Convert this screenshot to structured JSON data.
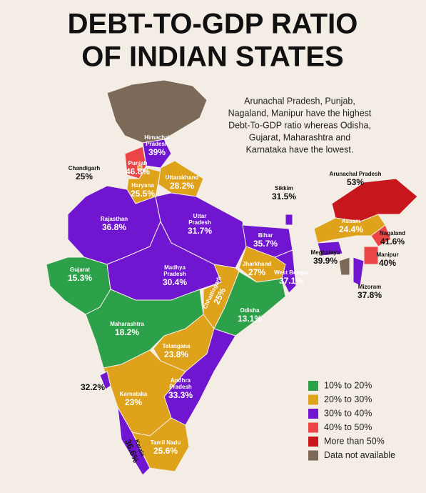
{
  "title_lines": [
    "DEBT-TO-GDP RATIO",
    "OF INDIAN STATES"
  ],
  "annotation_lines": [
    "Arunachal Pradesh, Punjab,",
    "Nagaland, Manipur have the highest",
    "Debt-To-GDP ratio whereas Odisha,",
    "Gujarat, Maharashtra and",
    "Karnataka have the lowest."
  ],
  "legend": [
    {
      "label": "10% to 20%",
      "color": "#2ca14a"
    },
    {
      "label": "20% to 30%",
      "color": "#dea21b"
    },
    {
      "label": "30% to 40%",
      "color": "#7016d0"
    },
    {
      "label": "40% to 50%",
      "color": "#ec4545"
    },
    {
      "label": "More than 50%",
      "color": "#c8161d"
    },
    {
      "label": "Data not available",
      "color": "#7d6957"
    }
  ],
  "states": [
    {
      "name": "Himachal Pradesh",
      "value": 39,
      "label": "39%",
      "color": "#7016d0"
    },
    {
      "name": "Punjab",
      "value": 46.8,
      "label": "46.8%",
      "color": "#ec4545"
    },
    {
      "name": "Chandigarh",
      "value": 25,
      "label": "25%",
      "color": "#dea21b"
    },
    {
      "name": "Haryana",
      "value": 25.5,
      "label": "25.5%",
      "color": "#dea21b"
    },
    {
      "name": "Uttarakhand",
      "value": 28.2,
      "label": "28.2%",
      "color": "#dea21b"
    },
    {
      "name": "Rajasthan",
      "value": 36.8,
      "label": "36.8%",
      "color": "#7016d0"
    },
    {
      "name": "Uttar Pradesh",
      "value": 31.7,
      "label": "31.7%",
      "color": "#7016d0"
    },
    {
      "name": "Bihar",
      "value": 35.7,
      "label": "35.7%",
      "color": "#7016d0"
    },
    {
      "name": "Sikkim",
      "value": 31.5,
      "label": "31.5%",
      "color": "#7016d0"
    },
    {
      "name": "Arunachal Pradesh",
      "value": 53,
      "label": "53%",
      "color": "#c8161d"
    },
    {
      "name": "Assam",
      "value": 24.4,
      "label": "24.4%",
      "color": "#dea21b"
    },
    {
      "name": "Nagaland",
      "value": 41.6,
      "label": "41.6%",
      "color": "#ec4545"
    },
    {
      "name": "Manipur",
      "value": 40,
      "label": "40%",
      "color": "#ec4545"
    },
    {
      "name": "Meghalaya",
      "value": 39.9,
      "label": "39.9%",
      "color": "#7016d0"
    },
    {
      "name": "Mizoram",
      "value": 37.8,
      "label": "37.8%",
      "color": "#7016d0"
    },
    {
      "name": "Gujarat",
      "value": 15.3,
      "label": "15.3%",
      "color": "#2ca14a"
    },
    {
      "name": "Madhya Pradesh",
      "value": 30.4,
      "label": "30.4%",
      "color": "#7016d0"
    },
    {
      "name": "Jharkhand",
      "value": 27,
      "label": "27%",
      "color": "#dea21b"
    },
    {
      "name": "West Bengal",
      "value": 37.1,
      "label": "37.1%",
      "color": "#7016d0"
    },
    {
      "name": "Chhattisgarh",
      "value": 25,
      "label": "25%",
      "color": "#dea21b"
    },
    {
      "name": "Odisha",
      "value": 13.1,
      "label": "13.1%",
      "color": "#2ca14a"
    },
    {
      "name": "Maharashtra",
      "value": 18.2,
      "label": "18.2%",
      "color": "#2ca14a"
    },
    {
      "name": "Telangana",
      "value": 23.8,
      "label": "23.8%",
      "color": "#dea21b"
    },
    {
      "name": "Andhra Pradesh",
      "value": 33.3,
      "label": "33.3%",
      "color": "#7016d0"
    },
    {
      "name": "Karnataka",
      "value": 23,
      "label": "23%",
      "color": "#dea21b"
    },
    {
      "name": "Tamil Nadu",
      "value": 25.6,
      "label": "25.6%",
      "color": "#dea21b"
    },
    {
      "name": "Kerala",
      "value": 36.6,
      "label": "36.6%",
      "color": "#7016d0"
    },
    {
      "name": null,
      "value": 32.2,
      "label": "32.2%",
      "color": "#7016d0"
    }
  ]
}
